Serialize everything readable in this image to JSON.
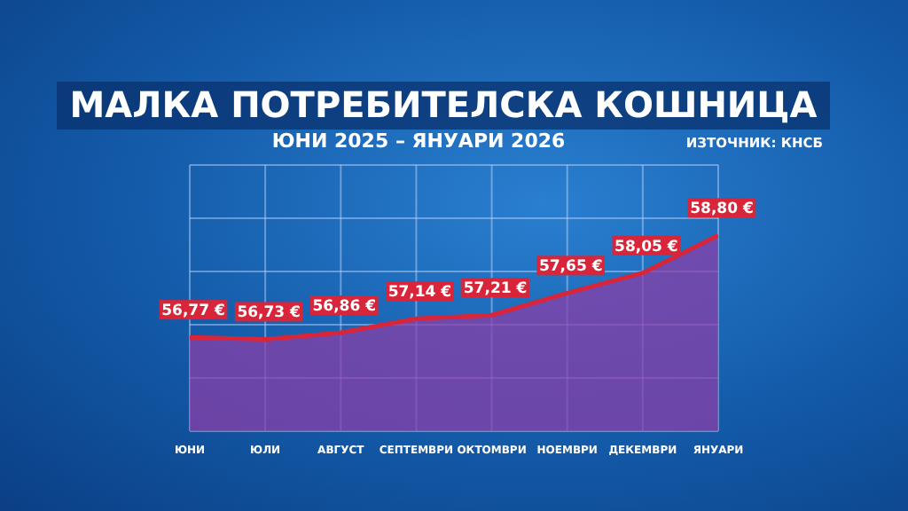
{
  "chart_data": {
    "type": "area",
    "title": "МАЛКА ПОТРЕБИТЕЛСКА КОШНИЦА",
    "subtitle": "ЮНИ 2025 – ЯНУАРИ 2026",
    "annotations": [
      "ИЗТОЧНИК: КНСБ"
    ],
    "categories": [
      "ЮНИ",
      "ЮЛИ",
      "АВГУСТ",
      "СЕПТЕМВРИ",
      "ОКТОМВРИ",
      "НОЕМВРИ",
      "ДЕКЕМВРИ",
      "ЯНУАРИ"
    ],
    "series": [
      {
        "color": "#d8253a",
        "values": [
          56.77,
          56.73,
          56.86,
          57.14,
          57.21,
          57.65,
          58.05,
          58.8
        ],
        "value_labels": [
          "56,77 €",
          "56,73 €",
          "56,86 €",
          "57,14 €",
          "57,21 €",
          "57,65 €",
          "58,05 €",
          "58,80 €"
        ]
      }
    ],
    "ylim": [
      54.9,
      60.2
    ],
    "yticks": [
      {
        "value": 54.9,
        "label": null
      },
      {
        "value": 55.96,
        "label": null
      },
      {
        "value": 57.02,
        "label": null
      },
      {
        "value": 58.08,
        "label": null
      },
      {
        "value": 59.14,
        "label": null
      },
      {
        "value": 60.2,
        "label": null
      }
    ],
    "grid": true
  }
}
